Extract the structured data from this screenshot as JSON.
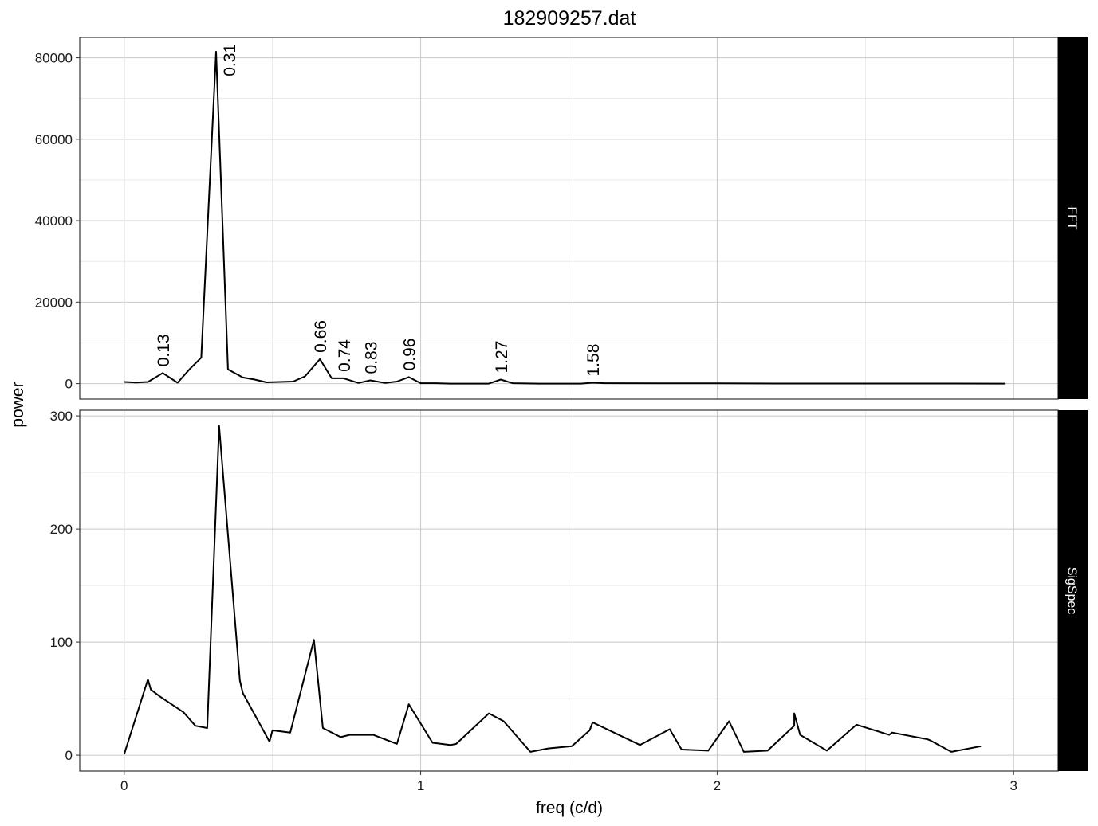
{
  "chart_data": {
    "type": "line",
    "title": "182909257.dat",
    "xlabel": "freq (c/d)",
    "ylabel": "power",
    "xlim": [
      -0.15,
      3.15
    ],
    "x_ticks": [
      0,
      1,
      2,
      3
    ],
    "grid": true,
    "panels": [
      {
        "strip": "FFT",
        "ylim": [
          -3800,
          85000
        ],
        "y_ticks": [
          0,
          20000,
          40000,
          60000,
          80000
        ],
        "series": [
          {
            "points": [
              [
                0.0,
                400
              ],
              [
                0.04,
                250
              ],
              [
                0.08,
                400
              ],
              [
                0.13,
                2600
              ],
              [
                0.18,
                200
              ],
              [
                0.22,
                3500
              ],
              [
                0.26,
                6400
              ],
              [
                0.31,
                81500
              ],
              [
                0.35,
                3500
              ],
              [
                0.4,
                1500
              ],
              [
                0.44,
                1000
              ],
              [
                0.48,
                300
              ],
              [
                0.57,
                500
              ],
              [
                0.61,
                1800
              ],
              [
                0.66,
                6000
              ],
              [
                0.7,
                1300
              ],
              [
                0.74,
                1300
              ],
              [
                0.79,
                150
              ],
              [
                0.83,
                800
              ],
              [
                0.88,
                150
              ],
              [
                0.92,
                500
              ],
              [
                0.96,
                1600
              ],
              [
                1.0,
                100
              ],
              [
                1.05,
                100
              ],
              [
                1.1,
                0
              ],
              [
                1.23,
                0
              ],
              [
                1.27,
                1000
              ],
              [
                1.31,
                100
              ],
              [
                1.4,
                0
              ],
              [
                1.54,
                0
              ],
              [
                1.58,
                200
              ],
              [
                1.62,
                100
              ],
              [
                1.8,
                50
              ],
              [
                2.0,
                50
              ],
              [
                2.2,
                20
              ],
              [
                2.4,
                20
              ],
              [
                2.6,
                20
              ],
              [
                2.8,
                20
              ],
              [
                2.97,
                0
              ]
            ]
          }
        ],
        "annotations": [
          {
            "text": "0.13",
            "x": 0.13,
            "y": 2600
          },
          {
            "text": "0.31",
            "x": 0.31,
            "y": 81500
          },
          {
            "text": "0.66",
            "x": 0.66,
            "y": 6000
          },
          {
            "text": "0.74",
            "x": 0.74,
            "y": 1300
          },
          {
            "text": "0.83",
            "x": 0.83,
            "y": 800
          },
          {
            "text": "0.96",
            "x": 0.96,
            "y": 1600
          },
          {
            "text": "1.27",
            "x": 1.27,
            "y": 1000
          },
          {
            "text": "1.58",
            "x": 1.58,
            "y": 200
          }
        ]
      },
      {
        "strip": "SigSpec",
        "ylim": [
          -14,
          305
        ],
        "y_ticks": [
          0,
          100,
          200,
          300
        ],
        "series": [
          {
            "points": [
              [
                0.0,
                1
              ],
              [
                0.08,
                67
              ],
              [
                0.09,
                58
              ],
              [
                0.12,
                52
              ],
              [
                0.2,
                38
              ],
              [
                0.24,
                26
              ],
              [
                0.28,
                24
              ],
              [
                0.32,
                291
              ],
              [
                0.39,
                66
              ],
              [
                0.4,
                55
              ],
              [
                0.49,
                12
              ],
              [
                0.5,
                22
              ],
              [
                0.56,
                20
              ],
              [
                0.64,
                102
              ],
              [
                0.67,
                24
              ],
              [
                0.73,
                16
              ],
              [
                0.76,
                18
              ],
              [
                0.84,
                18
              ],
              [
                0.92,
                10
              ],
              [
                0.96,
                45
              ],
              [
                1.04,
                11
              ],
              [
                1.1,
                9
              ],
              [
                1.12,
                10
              ],
              [
                1.23,
                37
              ],
              [
                1.28,
                30
              ],
              [
                1.37,
                3
              ],
              [
                1.43,
                6
              ],
              [
                1.51,
                8
              ],
              [
                1.57,
                22
              ],
              [
                1.58,
                29
              ],
              [
                1.74,
                9
              ],
              [
                1.84,
                23
              ],
              [
                1.88,
                5
              ],
              [
                1.97,
                4
              ],
              [
                2.04,
                30
              ],
              [
                2.09,
                3
              ],
              [
                2.17,
                4
              ],
              [
                2.26,
                26
              ],
              [
                2.26,
                37
              ],
              [
                2.28,
                18
              ],
              [
                2.37,
                4
              ],
              [
                2.47,
                27
              ],
              [
                2.58,
                18
              ],
              [
                2.59,
                20
              ],
              [
                2.71,
                14
              ],
              [
                2.72,
                13
              ],
              [
                2.79,
                3
              ],
              [
                2.89,
                8
              ]
            ]
          }
        ]
      }
    ]
  }
}
